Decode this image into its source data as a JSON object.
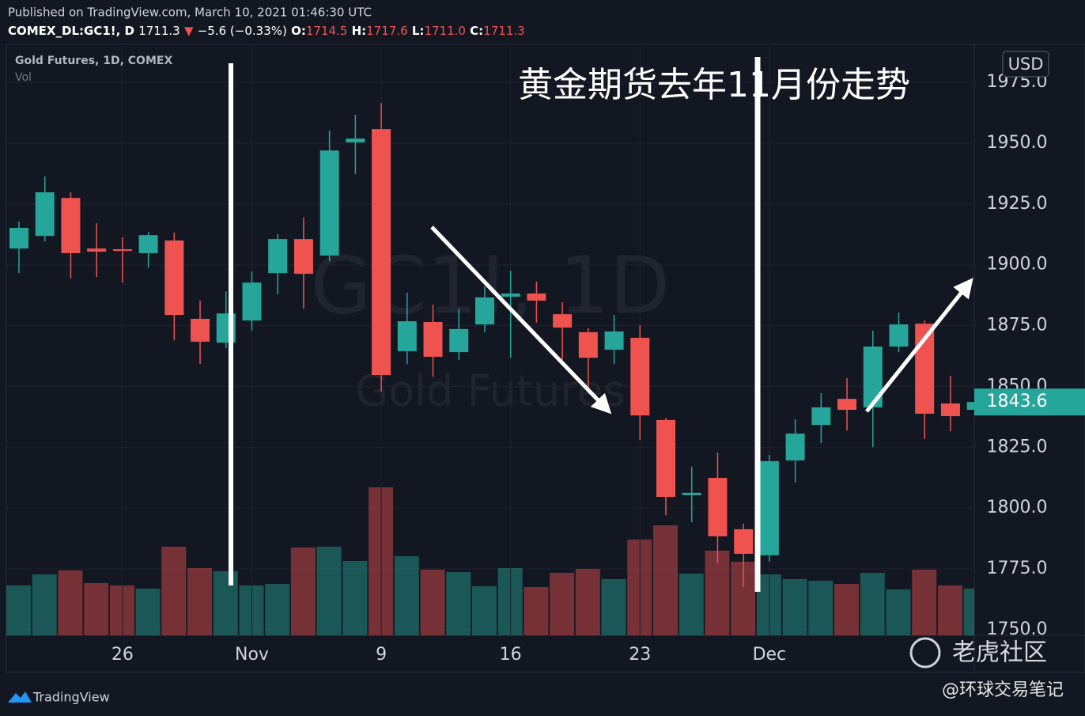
{
  "header": {
    "published": "Published on TradingView.com, March 10, 2021 01:46:30 UTC",
    "symbol": "COMEX_DL:GC1!, D",
    "last": "1711.3",
    "arrow": "▼",
    "change": "−5.6 (−0.33%)",
    "ohlc": [
      {
        "label": "O:",
        "value": "1714.5"
      },
      {
        "label": "H:",
        "value": "1717.6"
      },
      {
        "label": "L:",
        "value": "1711.0"
      },
      {
        "label": "C:",
        "value": "1711.3"
      }
    ]
  },
  "chart_data": {
    "type": "candlestick",
    "title": "Gold Futures, 1D, COMEX",
    "volume_label": "Vol",
    "watermark": [
      "GC1!, 1D",
      "Gold Futures"
    ],
    "currency": "USD",
    "annotation": "黄金期货去年11月份走势",
    "categories": [
      null,
      null,
      null,
      null,
      "26",
      null,
      null,
      null,
      null,
      "Nov",
      null,
      null,
      null,
      null,
      "9",
      null,
      null,
      null,
      null,
      "16",
      null,
      null,
      null,
      null,
      "23",
      null,
      null,
      null,
      null,
      "Dec",
      null,
      null,
      null,
      null,
      null,
      null,
      null,
      null
    ],
    "open": [
      1906.7,
      1911.9,
      1927.5,
      1906.7,
      1906.4,
      1904.8,
      1910.0,
      1877.8,
      1868.0,
      1877.1,
      1896.6,
      1910.6,
      1903.8,
      1950.3,
      1955.8,
      1864.5,
      1876.5,
      1864.1,
      1875.5,
      1886.9,
      1888.2,
      1879.7,
      1872.3,
      1865.1,
      1870.0,
      1836.2,
      1805.3,
      1812.4,
      1791.3,
      1780.6,
      1819.6,
      1834.2,
      1844.9,
      1841.4,
      1866.4,
      1875.8,
      1843.0,
      1840.4
    ],
    "high": [
      1917.8,
      1936.3,
      1929.8,
      1917.1,
      1911.3,
      1913.5,
      1913.2,
      1885.3,
      1889.0,
      1897.3,
      1912.6,
      1919.4,
      1955.2,
      1961.7,
      1966.5,
      1888.5,
      1883.6,
      1882.0,
      1891.1,
      1897.6,
      1893.1,
      1884.6,
      1873.9,
      1879.4,
      1875.2,
      1837.1,
      1817.0,
      1822.8,
      1793.6,
      1821.9,
      1836.5,
      1847.2,
      1853.4,
      1872.9,
      1880.4,
      1877.1,
      1854.4,
      1845.0
    ],
    "low": [
      1896.6,
      1909.6,
      1894.4,
      1895.0,
      1892.7,
      1898.9,
      1869.0,
      1859.2,
      1865.7,
      1872.9,
      1887.9,
      1882.0,
      1901.5,
      1937.3,
      1847.9,
      1859.2,
      1854.0,
      1860.9,
      1872.3,
      1861.8,
      1876.2,
      1860.9,
      1849.5,
      1859.2,
      1828.0,
      1797.1,
      1794.2,
      1777.3,
      1767.6,
      1778.0,
      1810.5,
      1826.7,
      1831.9,
      1825.1,
      1864.1,
      1828.4,
      1831.6,
      1838.0
    ],
    "close": [
      1915.2,
      1929.8,
      1904.8,
      1905.4,
      1905.7,
      1912.2,
      1879.4,
      1868.4,
      1880.0,
      1892.7,
      1910.6,
      1896.3,
      1947.0,
      1951.9,
      1854.7,
      1876.8,
      1862.2,
      1873.6,
      1886.6,
      1888.2,
      1885.3,
      1874.2,
      1861.8,
      1872.6,
      1838.1,
      1804.6,
      1806.3,
      1788.4,
      1781.2,
      1819.3,
      1830.6,
      1841.4,
      1840.4,
      1866.4,
      1875.5,
      1838.8,
      1837.8,
      1843.6
    ],
    "volume": [
      63,
      77,
      82,
      66,
      63,
      59,
      112,
      85,
      81,
      63,
      65,
      111,
      112,
      94,
      187,
      100,
      83,
      80,
      62,
      85,
      61,
      79,
      84,
      71,
      121,
      139,
      78,
      107,
      93,
      77,
      71,
      69,
      65,
      79,
      58,
      83,
      63,
      59
    ],
    "volume_lim": [
      0,
      745
    ],
    "up_color": "#26a69a",
    "down_color": "#ef5350",
    "ylim": [
      1747.7,
      1990.0
    ],
    "yticks": [
      {
        "value": 1750,
        "label": "1750.0"
      },
      {
        "value": 1775,
        "label": "1775.0"
      },
      {
        "value": 1800,
        "label": "1800.0"
      },
      {
        "value": 1825,
        "label": "1825.0"
      },
      {
        "value": 1850,
        "label": "1850.0"
      },
      {
        "value": 1875,
        "label": "1875.0"
      },
      {
        "value": 1900,
        "label": "1900.0"
      },
      {
        "value": 1925,
        "label": "1925.0"
      },
      {
        "value": 1950,
        "label": "1950.0"
      },
      {
        "value": 1975,
        "label": "1975.0"
      }
    ],
    "last_price": 1843.6
  },
  "footer": {
    "brand": "TradingView",
    "watermark": "老虎社区",
    "credit": "@环球交易笔记"
  }
}
